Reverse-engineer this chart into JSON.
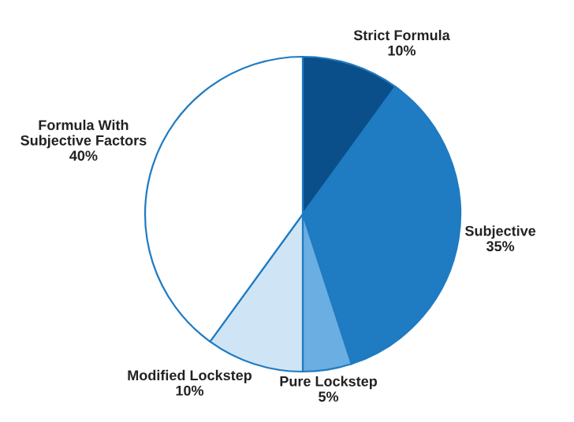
{
  "chart_data": {
    "type": "pie",
    "categories": [
      "Strict Formula",
      "Subjective",
      "Pure Lockstep",
      "Modified Lockstep",
      "Formula With\nSubjective Factors"
    ],
    "values": [
      10,
      35,
      5,
      10,
      40
    ],
    "value_labels": [
      "10%",
      "35%",
      "5%",
      "10%",
      "40%"
    ],
    "colors": [
      "#0b4f8a",
      "#1f7bc2",
      "#6aaee2",
      "#cfe5f6",
      "#ffffff"
    ]
  }
}
